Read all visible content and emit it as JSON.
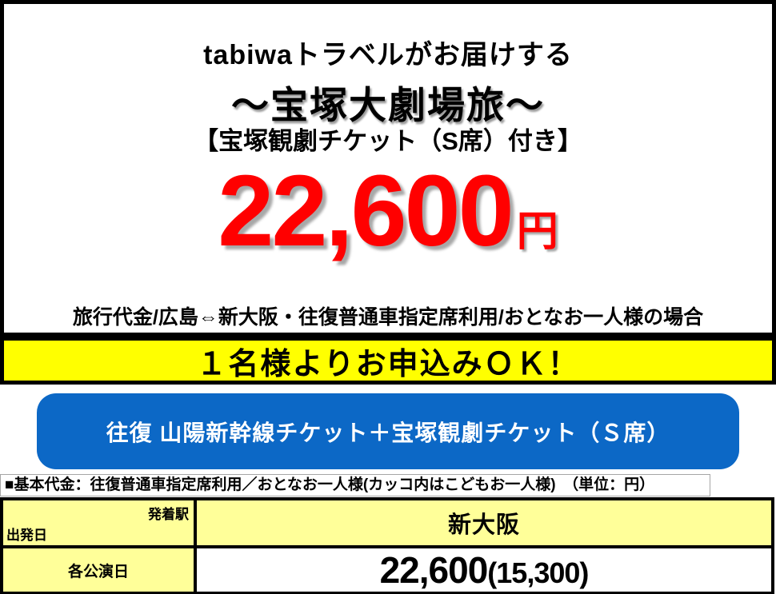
{
  "header": {
    "line1": "tabiwaトラベルがお届けする",
    "line2": "～宝塚大劇場旅～",
    "line3": "【宝塚観劇チケット（S席）付き】",
    "price": "22,600",
    "price_unit": "円",
    "price_note": "旅行代金/広島⇔新大阪・往復普通車指定席利用/おとなお一人様の場合"
  },
  "banner": {
    "text": "１名様よりお申込みＯＫ！"
  },
  "ticket_box": {
    "text": "往復 山陽新幹線チケット＋宝塚観劇チケット（Ｓ席）"
  },
  "fee_note": "■基本代金：往復普通車指定席利用／おとなお一人様(カッコ内はこどもお一人様)　（単位：円）",
  "fare_table": {
    "corner_top_right": "発着駅",
    "corner_bottom_left": "出発日",
    "station": "新大阪",
    "row_label": "各公演日",
    "fare_adult": "22,600",
    "fare_child": "(15,300)"
  },
  "colors": {
    "price_red": "#FF0000",
    "banner_yellow": "#FFFF00",
    "box_blue": "#0C68C6",
    "table_cell_yellow": "#FFFF99"
  }
}
